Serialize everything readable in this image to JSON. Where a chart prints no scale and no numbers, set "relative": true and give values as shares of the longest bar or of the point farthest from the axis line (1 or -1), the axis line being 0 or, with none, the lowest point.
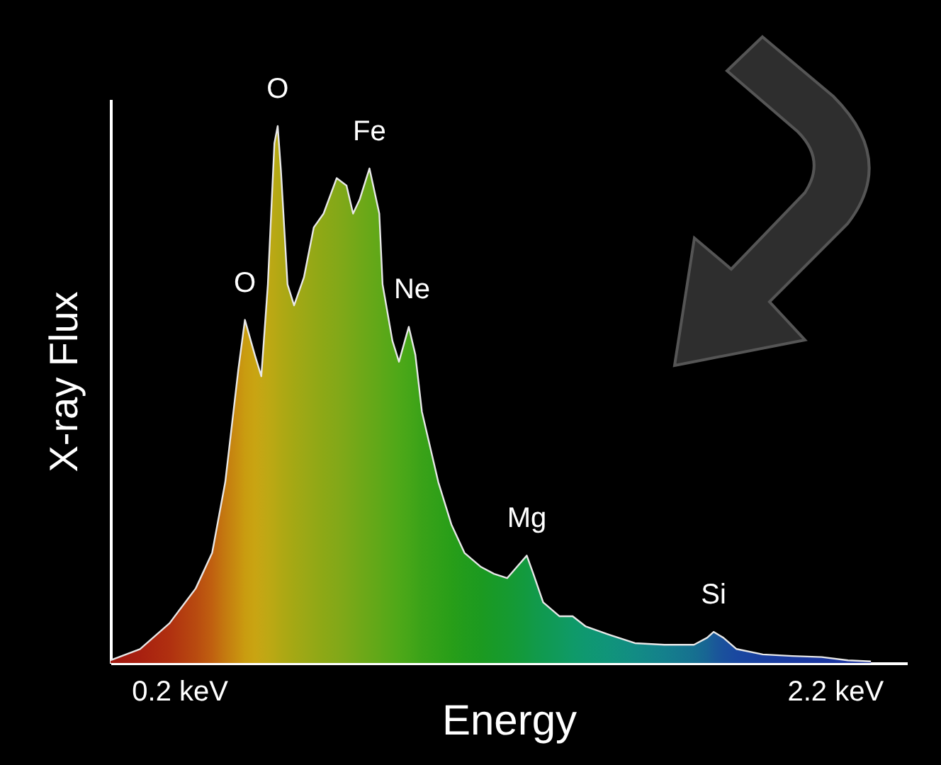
{
  "chart_data": {
    "type": "area",
    "relative": true,
    "xlabel": "Energy",
    "ylabel": "X-ray Flux",
    "xlim": [
      -0.01,
      2.42
    ],
    "xticks": [
      {
        "value": 0.2,
        "label": "0.2 keV"
      },
      {
        "value": 2.2,
        "label": "2.2 keV"
      }
    ],
    "x": [
      -0.01,
      0.08,
      0.17,
      0.25,
      0.3,
      0.34,
      0.38,
      0.4,
      0.43,
      0.45,
      0.47,
      0.49,
      0.5,
      0.51,
      0.53,
      0.55,
      0.58,
      0.61,
      0.64,
      0.68,
      0.71,
      0.73,
      0.75,
      0.78,
      0.81,
      0.82,
      0.85,
      0.87,
      0.9,
      0.92,
      0.94,
      0.99,
      1.03,
      1.07,
      1.12,
      1.16,
      1.2,
      1.23,
      1.26,
      1.28,
      1.31,
      1.36,
      1.4,
      1.44,
      1.51,
      1.59,
      1.68,
      1.77,
      1.81,
      1.83,
      1.86,
      1.9,
      1.98,
      2.07,
      2.16,
      2.24,
      2.31
    ],
    "series": [
      {
        "color": "#e8e8e8",
        "colors": [
          "#a01810",
          "#a82010",
          "#b03010",
          "#b84a10",
          "#c06010",
          "#c47a10",
          "#c89010",
          "#c99c10",
          "#c9a412",
          "#c4a614",
          "#bea814",
          "#b8a814",
          "#b4a814",
          "#b0a814",
          "#aaa814",
          "#a4a814",
          "#9ca816",
          "#94a816",
          "#8ca816",
          "#84a818",
          "#7ca818",
          "#76a818",
          "#70a818",
          "#68a818",
          "#60a818",
          "#5ca818",
          "#54a818",
          "#4ea818",
          "#46a618",
          "#40a418",
          "#3aa218",
          "#30a018",
          "#289e18",
          "#229c1c",
          "#1c9a20",
          "#189a28",
          "#169a30",
          "#149a38",
          "#129a40",
          "#129a48",
          "#109a50",
          "#109a5c",
          "#0f9a68",
          "#0f9870",
          "#10947a",
          "#128c84",
          "#14808c",
          "#167090",
          "#186494",
          "#1a5a98",
          "#1a509c",
          "#1a48a0",
          "#1a40a0",
          "#1a3aa0",
          "#1a36a0",
          "#1a34a0",
          "#1a32a0"
        ],
        "values": [
          0.005,
          0.026,
          0.074,
          0.139,
          0.205,
          0.337,
          0.547,
          0.639,
          0.574,
          0.534,
          0.705,
          0.968,
          1.0,
          0.916,
          0.705,
          0.666,
          0.718,
          0.811,
          0.837,
          0.903,
          0.889,
          0.837,
          0.863,
          0.921,
          0.837,
          0.705,
          0.6,
          0.561,
          0.626,
          0.574,
          0.468,
          0.337,
          0.258,
          0.205,
          0.179,
          0.166,
          0.158,
          0.179,
          0.2,
          0.166,
          0.113,
          0.087,
          0.087,
          0.068,
          0.053,
          0.037,
          0.034,
          0.034,
          0.047,
          0.058,
          0.047,
          0.026,
          0.016,
          0.013,
          0.011,
          0.005,
          0.003
        ]
      }
    ],
    "annotations": [
      {
        "text": "O",
        "x": 0.4,
        "y": 0.639
      },
      {
        "text": "O",
        "x": 0.5,
        "y": 1.0
      },
      {
        "text": "Fe",
        "x": 0.78,
        "y": 0.921
      },
      {
        "text": "Ne",
        "x": 0.91,
        "y": 0.626
      },
      {
        "text": "Mg",
        "x": 1.26,
        "y": 0.2
      },
      {
        "text": "Si",
        "x": 1.83,
        "y": 0.058
      }
    ]
  }
}
